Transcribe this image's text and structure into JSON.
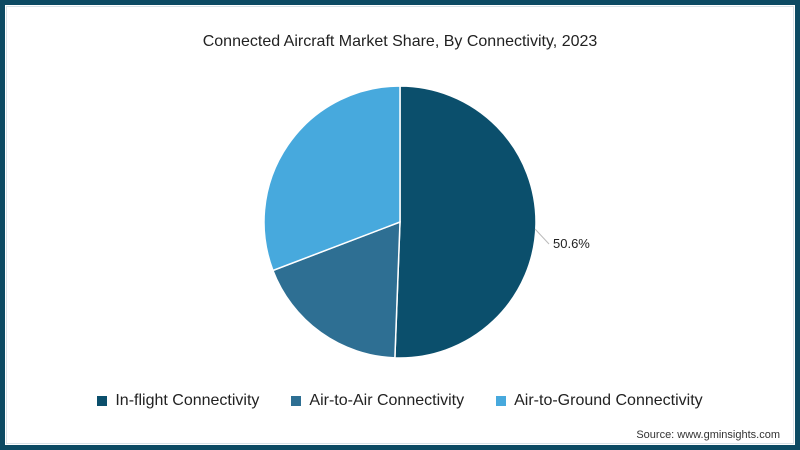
{
  "title": "Connected Aircraft Market Share, By Connectivity, 2023",
  "source": "Source: www.gminsights.com",
  "legend": [
    {
      "label": "In-flight Connectivity",
      "color": "#0b4f6c"
    },
    {
      "label": "Air-to-Air Connectivity",
      "color": "#2e6f93"
    },
    {
      "label": "Air-to-Ground Connectivity",
      "color": "#47a9dd"
    }
  ],
  "data_label": "50.6%",
  "chart_data": {
    "type": "pie",
    "title": "Connected Aircraft Market Share, By Connectivity, 2023",
    "categories": [
      "In-flight Connectivity",
      "Air-to-Air Connectivity",
      "Air-to-Ground Connectivity"
    ],
    "values": [
      50.6,
      18.6,
      30.8
    ],
    "colors": [
      "#0b4f6c",
      "#2e6f93",
      "#47a9dd"
    ],
    "labels_shown": {
      "In-flight Connectivity": "50.6%"
    },
    "legend_position": "bottom",
    "start_angle": "12 o'clock, clockwise"
  }
}
